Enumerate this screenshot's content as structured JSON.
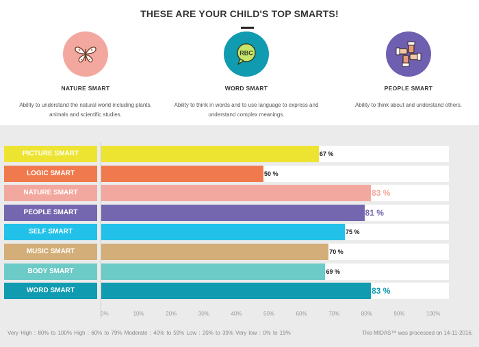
{
  "header": {
    "title": "THESE ARE YOUR CHILD'S TOP SMARTS!"
  },
  "top_smarts": [
    {
      "name": "NATURE SMART",
      "description": "Ability to understand the natural world including plants, animals and scientific studies.",
      "color": "#f3a89f",
      "icon": "butterfly-icon"
    },
    {
      "name": "WORD SMART",
      "description": "Ability to think in words and to use language to express and understand complex meanings.",
      "color": "#109bb0",
      "icon": "speech-bubble-icon",
      "icon_text": "RBC"
    },
    {
      "name": "PEOPLE SMART",
      "description": "Ability to think about and understand others.",
      "color": "#6f5fb0",
      "icon": "handshake-icon"
    }
  ],
  "chart_data": {
    "type": "bar",
    "orientation": "horizontal",
    "categories": [
      "PICTURE SMART",
      "LOGIC SMART",
      "NATURE SMART",
      "PEOPLE SMART",
      "SELF SMART",
      "MUSIC SMART",
      "BODY SMART",
      "WORD SMART"
    ],
    "values": [
      67,
      50,
      83,
      81,
      75,
      70,
      69,
      83
    ],
    "value_labels": [
      "67 %",
      "50 %",
      "83 %",
      "81 %",
      "75 %",
      "70 %",
      "69 %",
      "83 %"
    ],
    "colors": [
      "#ede432",
      "#f07a4e",
      "#f3a89f",
      "#7467b0",
      "#21c1ea",
      "#d3ae79",
      "#6ccac7",
      "#109bb0"
    ],
    "highlighted": [
      "NATURE SMART",
      "PEOPLE SMART",
      "WORD SMART"
    ],
    "x_ticks": [
      "0%",
      "10%",
      "20%",
      "30%",
      "40%",
      "50%",
      "60%",
      "70%",
      "80%",
      "90%",
      "100%"
    ],
    "xlim": [
      0,
      100
    ]
  },
  "footer": {
    "legend": "Very High : 80% to 100%   High : 60% to 79%   Moderate : 40% to 59%   Low : 20% to 39%   Very low : 0% to 19%",
    "processed": "This MIDAS™ was processed on 14-11-2016."
  }
}
